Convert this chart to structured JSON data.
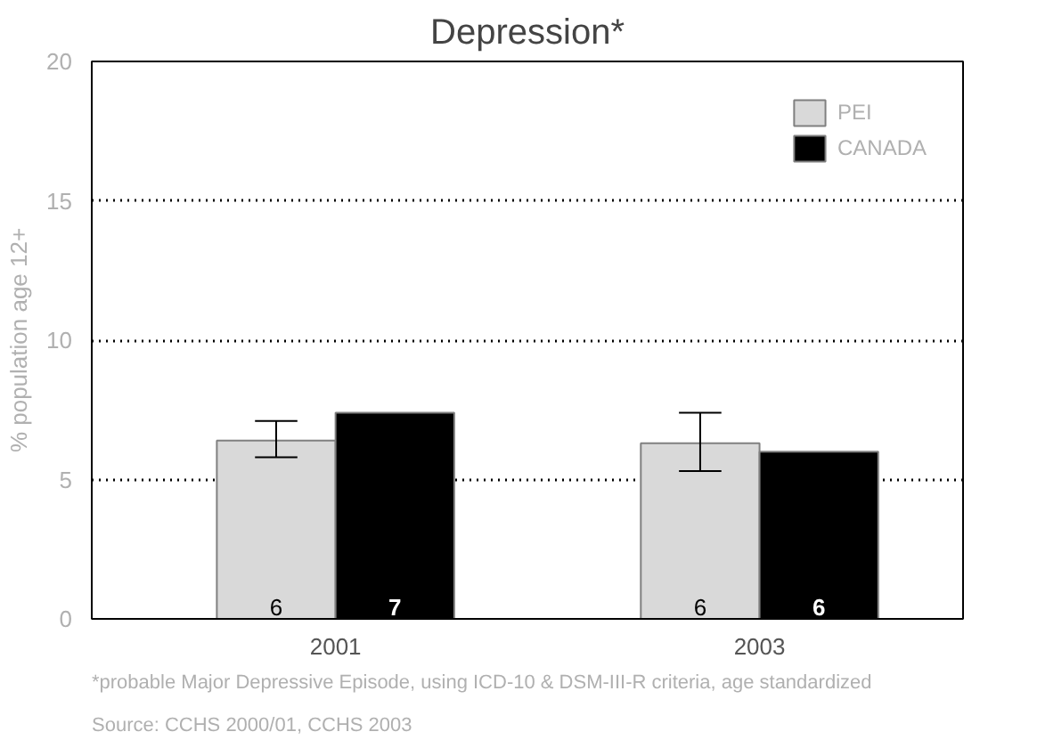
{
  "chart_data": {
    "type": "bar",
    "title": "Depression*",
    "ylabel": "% population age 12+",
    "categories": [
      "2001",
      "2003"
    ],
    "series": [
      {
        "name": "PEI",
        "color": "#d9d9d9",
        "values": [
          6.4,
          6.3
        ],
        "errors": [
          [
            5.8,
            7.1
          ],
          [
            5.3,
            7.4
          ]
        ],
        "value_labels": [
          "6",
          "6"
        ]
      },
      {
        "name": "CANADA",
        "color": "#000000",
        "values": [
          7.4,
          6.0
        ],
        "value_labels": [
          "7",
          "6"
        ]
      }
    ],
    "ylim": [
      0,
      20
    ],
    "yticks": [
      0,
      5,
      10,
      15,
      20
    ],
    "grid": "y",
    "legend": "top right",
    "annotations": [
      "*probable Major Depressive Episode, using ICD-10 & DSM-III-R criteria, age standardized",
      "Source: CCHS 2000/01, CCHS 2003"
    ]
  }
}
